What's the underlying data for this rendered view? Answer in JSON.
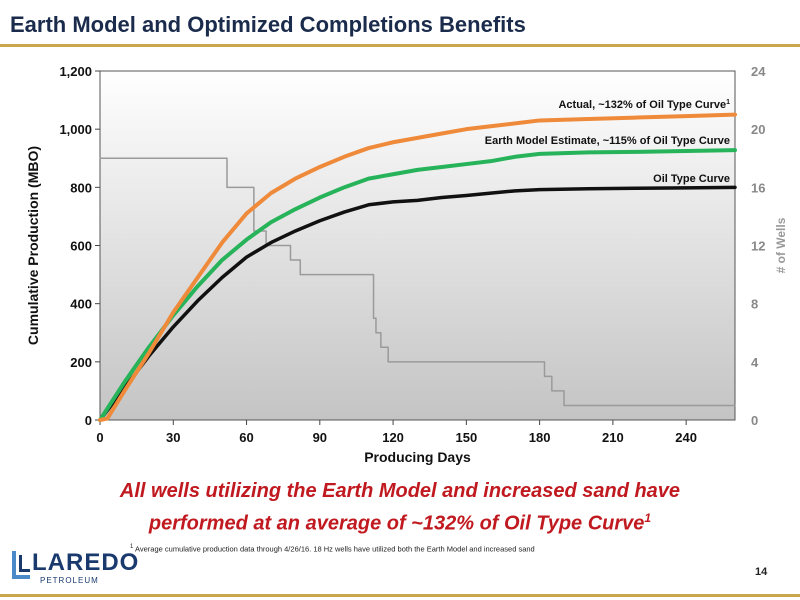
{
  "slide": {
    "title": "Earth Model and Optimized Completions Benefits",
    "headline_line1": "All wells utilizing the Earth Model and increased sand have",
    "headline_line2": "performed at an average of ~132% of Oil Type Curve",
    "headline_sup": "1",
    "footnote_sup": "1",
    "footnote": "Average cumulative production data through 4/26/16. 18 Hz wells have utilized both the Earth Model and increased sand",
    "logo_text": "LAREDO",
    "logo_sub": "PETROLEUM",
    "page_number": "14"
  },
  "chart_data": {
    "type": "line",
    "xlabel": "Producing Days",
    "ylabel": "Cumulative Production (MBO)",
    "y2label": "# of Wells",
    "xlim": [
      0,
      260
    ],
    "ylim": [
      0,
      1200
    ],
    "y2lim": [
      0,
      24
    ],
    "xticks": [
      0,
      30,
      60,
      90,
      120,
      150,
      180,
      210,
      240
    ],
    "yticks": [
      0,
      200,
      400,
      600,
      800,
      1000,
      1200
    ],
    "y2ticks": [
      0,
      4,
      8,
      12,
      16,
      20,
      24
    ],
    "ytick_labels": [
      "0",
      "200",
      "400",
      "600",
      "800",
      "1,000",
      "1,200"
    ],
    "grid": false,
    "colors": {
      "actual": "#ef8a3a",
      "earth_model": "#27b35a",
      "type_curve": "#111111",
      "wells": "#9a9a9a"
    },
    "series": [
      {
        "key": "actual",
        "label": "Actual, ~132% of Oil Type Curve",
        "label_sup": "1",
        "x": [
          0,
          3,
          10,
          20,
          30,
          40,
          50,
          60,
          70,
          80,
          90,
          100,
          110,
          120,
          130,
          140,
          150,
          160,
          170,
          180,
          200,
          220,
          240,
          260
        ],
        "y": [
          0,
          5,
          100,
          230,
          370,
          490,
          610,
          710,
          780,
          830,
          870,
          905,
          935,
          955,
          970,
          985,
          1000,
          1010,
          1020,
          1030,
          1035,
          1040,
          1045,
          1050
        ]
      },
      {
        "key": "earth_model",
        "label": "Earth Model Estimate, ~115% of Oil Type Curve",
        "x": [
          0,
          10,
          20,
          30,
          40,
          50,
          60,
          70,
          80,
          90,
          100,
          110,
          120,
          130,
          140,
          150,
          160,
          170,
          180,
          200,
          220,
          240,
          260
        ],
        "y": [
          0,
          130,
          250,
          360,
          460,
          550,
          620,
          680,
          725,
          765,
          800,
          830,
          845,
          860,
          870,
          880,
          890,
          905,
          915,
          920,
          922,
          925,
          928
        ]
      },
      {
        "key": "type_curve",
        "label": "Oil Type Curve",
        "x": [
          0,
          10,
          20,
          30,
          40,
          50,
          60,
          70,
          80,
          90,
          100,
          110,
          120,
          130,
          140,
          150,
          160,
          170,
          180,
          200,
          220,
          240,
          260
        ],
        "y": [
          0,
          110,
          220,
          320,
          410,
          490,
          560,
          610,
          650,
          685,
          715,
          740,
          750,
          755,
          765,
          772,
          780,
          788,
          792,
          795,
          797,
          798,
          800
        ]
      },
      {
        "key": "wells",
        "label": "# of Wells",
        "axis": "right",
        "step": true,
        "x": [
          0,
          50,
          52,
          57,
          63,
          65,
          68,
          75,
          78,
          82,
          98,
          102,
          110,
          112,
          113,
          115,
          118,
          120,
          180,
          182,
          185,
          190,
          260
        ],
        "y": [
          18,
          18,
          16,
          16,
          13,
          13,
          12,
          12,
          11,
          10,
          10,
          10,
          10,
          7,
          6,
          5,
          4,
          4,
          4,
          3,
          2,
          1,
          1
        ]
      }
    ]
  }
}
